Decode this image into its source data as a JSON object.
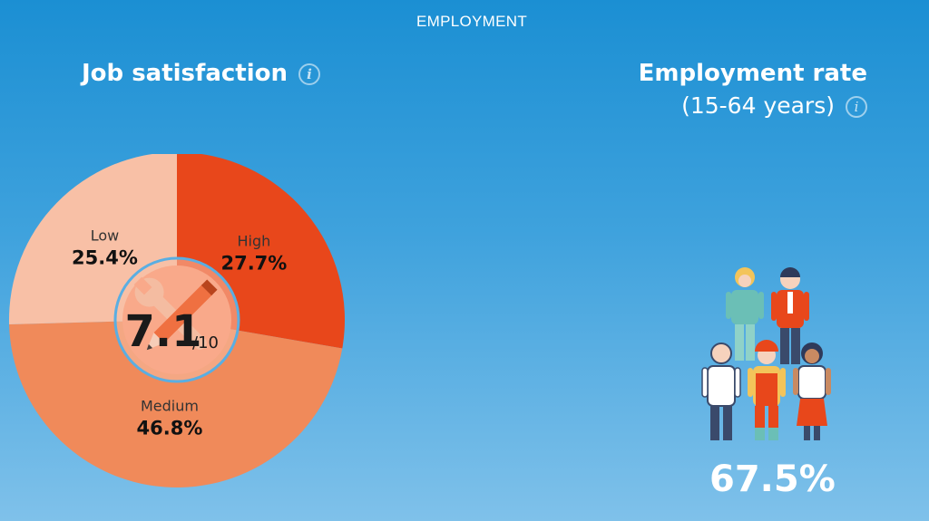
{
  "section_title": "EMPLOYMENT",
  "job_satisfaction": {
    "title": "Job satisfaction",
    "info_icon": "info-icon",
    "score": "7.1",
    "score_suffix": "/10",
    "center_icon": "tools-icon"
  },
  "employment_rate": {
    "title": "Employment rate",
    "subtitle": "(15-64 years)",
    "info_icon": "info-icon",
    "value": "67.5%",
    "illustration": "people-group-icon"
  },
  "chart_data": {
    "type": "pie",
    "title": "Job satisfaction",
    "slices": [
      {
        "label": "High",
        "value": 27.7,
        "display": "27.7%",
        "color": "#e8471b"
      },
      {
        "label": "Medium",
        "value": 46.8,
        "display": "46.8%",
        "color": "#f08a5a"
      },
      {
        "label": "Low",
        "value": 25.4,
        "display": "25.4%",
        "color": "#f8c0a6"
      }
    ],
    "start": "12 o'clock, clockwise"
  },
  "colors": {
    "background_top": "#1b8fd3",
    "background_bottom": "#7fc1ea",
    "accent": "#e8471b"
  }
}
